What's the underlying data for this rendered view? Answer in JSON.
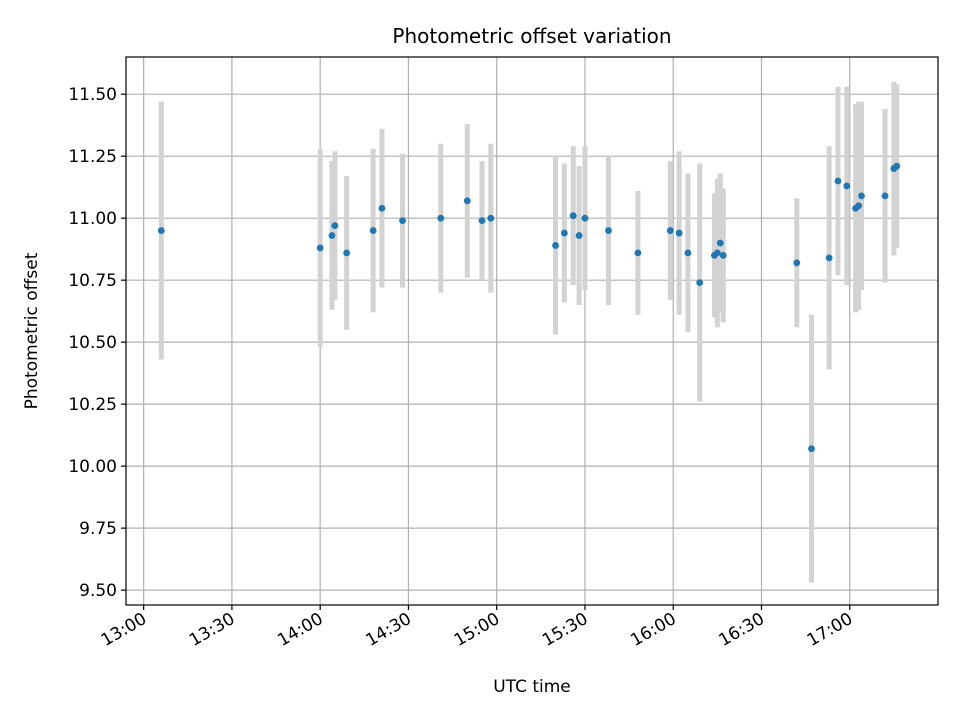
{
  "chart_data": {
    "type": "scatter",
    "title": "Photometric offset variation",
    "xlabel": "UTC time",
    "ylabel": "Photometric offset",
    "grid": true,
    "x_ticks": [
      "13:00",
      "13:30",
      "14:00",
      "14:30",
      "15:00",
      "15:30",
      "16:00",
      "16:30",
      "17:00"
    ],
    "y_ticks": [
      "9.50",
      "9.75",
      "10.00",
      "10.25",
      "10.50",
      "10.75",
      "11.00",
      "11.25",
      "11.50"
    ],
    "xlim": [
      "12:54",
      "17:30"
    ],
    "ylim": [
      9.44,
      11.65
    ],
    "colors": {
      "point": "#1f77b4",
      "errorbar": "#d3d3d3"
    },
    "points": [
      {
        "x": "13:06",
        "y": 10.95,
        "err": 0.52
      },
      {
        "x": "14:00",
        "y": 10.88,
        "err": 0.4
      },
      {
        "x": "14:04",
        "y": 10.93,
        "err": 0.3
      },
      {
        "x": "14:05",
        "y": 10.97,
        "err": 0.3
      },
      {
        "x": "14:09",
        "y": 10.86,
        "err": 0.31
      },
      {
        "x": "14:18",
        "y": 10.95,
        "err": 0.33
      },
      {
        "x": "14:21",
        "y": 11.04,
        "err": 0.32
      },
      {
        "x": "14:28",
        "y": 10.99,
        "err": 0.27
      },
      {
        "x": "14:41",
        "y": 11.0,
        "err": 0.3
      },
      {
        "x": "14:50",
        "y": 11.07,
        "err": 0.31
      },
      {
        "x": "14:55",
        "y": 10.99,
        "err": 0.24
      },
      {
        "x": "14:58",
        "y": 11.0,
        "err": 0.3
      },
      {
        "x": "15:20",
        "y": 10.89,
        "err": 0.36
      },
      {
        "x": "15:23",
        "y": 10.94,
        "err": 0.28
      },
      {
        "x": "15:26",
        "y": 11.01,
        "err": 0.28
      },
      {
        "x": "15:28",
        "y": 10.93,
        "err": 0.28
      },
      {
        "x": "15:30",
        "y": 11.0,
        "err": 0.29
      },
      {
        "x": "15:38",
        "y": 10.95,
        "err": 0.3
      },
      {
        "x": "15:48",
        "y": 10.86,
        "err": 0.25
      },
      {
        "x": "15:59",
        "y": 10.95,
        "err": 0.28
      },
      {
        "x": "16:02",
        "y": 10.94,
        "err": 0.33
      },
      {
        "x": "16:05",
        "y": 10.86,
        "err": 0.32
      },
      {
        "x": "16:09",
        "y": 10.74,
        "err": 0.48
      },
      {
        "x": "16:14",
        "y": 10.85,
        "err": 0.25
      },
      {
        "x": "16:15",
        "y": 10.86,
        "err": 0.3
      },
      {
        "x": "16:16",
        "y": 10.9,
        "err": 0.28
      },
      {
        "x": "16:17",
        "y": 10.85,
        "err": 0.27
      },
      {
        "x": "16:42",
        "y": 10.82,
        "err": 0.26
      },
      {
        "x": "16:47",
        "y": 10.07,
        "err": 0.54
      },
      {
        "x": "16:53",
        "y": 10.84,
        "err": 0.45
      },
      {
        "x": "16:56",
        "y": 11.15,
        "err": 0.38
      },
      {
        "x": "16:59",
        "y": 11.13,
        "err": 0.4
      },
      {
        "x": "17:02",
        "y": 11.04,
        "err": 0.42
      },
      {
        "x": "17:03",
        "y": 11.05,
        "err": 0.42
      },
      {
        "x": "17:04",
        "y": 11.09,
        "err": 0.38
      },
      {
        "x": "17:12",
        "y": 11.09,
        "err": 0.35
      },
      {
        "x": "17:15",
        "y": 11.2,
        "err": 0.35
      },
      {
        "x": "17:16",
        "y": 11.21,
        "err": 0.33
      }
    ]
  }
}
